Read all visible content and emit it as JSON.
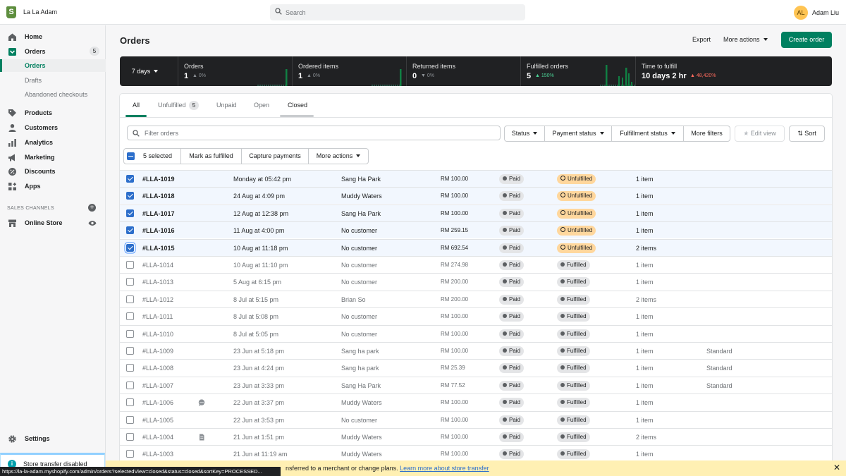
{
  "store_name": "La La Adam",
  "search": {
    "placeholder": "Search"
  },
  "user": {
    "initials": "AL",
    "name": "Adam Liu"
  },
  "sidebar": {
    "home": "Home",
    "orders": "Orders",
    "orders_count": "5",
    "orders_sub": "Orders",
    "drafts": "Drafts",
    "abandoned": "Abandoned checkouts",
    "products": "Products",
    "customers": "Customers",
    "analytics": "Analytics",
    "marketing": "Marketing",
    "discounts": "Discounts",
    "apps": "Apps",
    "sales_channels": "SALES CHANNELS",
    "online_store": "Online Store",
    "settings": "Settings",
    "transfer": "Store transfer disabled"
  },
  "page": {
    "title": "Orders",
    "export": "Export",
    "more_actions": "More actions",
    "create_order": "Create order"
  },
  "metrics": {
    "period": "7 days",
    "orders": {
      "label": "Orders",
      "value": "1",
      "delta": "0%"
    },
    "ordered_items": {
      "label": "Ordered items",
      "value": "1",
      "delta": "0%"
    },
    "returned_items": {
      "label": "Returned items",
      "value": "0",
      "delta": "0%"
    },
    "fulfilled_orders": {
      "label": "Fulfilled orders",
      "value": "5",
      "delta": "150%"
    },
    "time_to_fulfill": {
      "label": "Time to fulfill",
      "value": "10 days 2 hr",
      "delta": "48,420%"
    }
  },
  "tabs": {
    "all": "All",
    "unfulfilled": "Unfulfilled",
    "unfulfilled_count": "5",
    "unpaid": "Unpaid",
    "open": "Open",
    "closed": "Closed"
  },
  "filters": {
    "placeholder": "Filter orders",
    "status": "Status",
    "payment_status": "Payment status",
    "fulfillment_status": "Fulfillment status",
    "more_filters": "More filters",
    "edit_view": "Edit view",
    "sort": "Sort"
  },
  "bulk": {
    "selected": "5 selected",
    "mark_fulfilled": "Mark as fulfilled",
    "capture": "Capture payments",
    "more_actions": "More actions"
  },
  "orders": [
    {
      "id": "#LLA-1019",
      "date": "Monday at 05:42 pm",
      "customer": "Sang Ha Park",
      "total": "RM 100.00",
      "payment": "Paid",
      "fulfillment": "Unfulfilled",
      "items": "1 item",
      "delivery": "",
      "selected": true,
      "icon": ""
    },
    {
      "id": "#LLA-1018",
      "date": "24 Aug at 4:09 pm",
      "customer": "Muddy Waters",
      "total": "RM 100.00",
      "payment": "Paid",
      "fulfillment": "Unfulfilled",
      "items": "1 item",
      "delivery": "",
      "selected": true,
      "icon": ""
    },
    {
      "id": "#LLA-1017",
      "date": "12 Aug at 12:38 pm",
      "customer": "Sang Ha Park",
      "total": "RM 100.00",
      "payment": "Paid",
      "fulfillment": "Unfulfilled",
      "items": "1 item",
      "delivery": "",
      "selected": true,
      "icon": ""
    },
    {
      "id": "#LLA-1016",
      "date": "11 Aug at 4:00 pm",
      "customer": "No customer",
      "total": "RM 259.15",
      "payment": "Paid",
      "fulfillment": "Unfulfilled",
      "items": "1 item",
      "delivery": "",
      "selected": true,
      "icon": ""
    },
    {
      "id": "#LLA-1015",
      "date": "10 Aug at 11:18 pm",
      "customer": "No customer",
      "total": "RM 692.54",
      "payment": "Paid",
      "fulfillment": "Unfulfilled",
      "items": "2 items",
      "delivery": "",
      "selected": true,
      "icon": ""
    },
    {
      "id": "#LLA-1014",
      "date": "10 Aug at 11:10 pm",
      "customer": "No customer",
      "total": "RM 274.98",
      "payment": "Paid",
      "fulfillment": "Fulfilled",
      "items": "1 item",
      "delivery": "",
      "selected": false,
      "icon": ""
    },
    {
      "id": "#LLA-1013",
      "date": "5 Aug at 6:15 pm",
      "customer": "No customer",
      "total": "RM 200.00",
      "payment": "Paid",
      "fulfillment": "Fulfilled",
      "items": "1 item",
      "delivery": "",
      "selected": false,
      "icon": ""
    },
    {
      "id": "#LLA-1012",
      "date": "8 Jul at 5:15 pm",
      "customer": "Brian So",
      "total": "RM 200.00",
      "payment": "Paid",
      "fulfillment": "Fulfilled",
      "items": "2 items",
      "delivery": "",
      "selected": false,
      "icon": ""
    },
    {
      "id": "#LLA-1011",
      "date": "8 Jul at 5:08 pm",
      "customer": "No customer",
      "total": "RM 100.00",
      "payment": "Paid",
      "fulfillment": "Fulfilled",
      "items": "1 item",
      "delivery": "",
      "selected": false,
      "icon": ""
    },
    {
      "id": "#LLA-1010",
      "date": "8 Jul at 5:05 pm",
      "customer": "No customer",
      "total": "RM 100.00",
      "payment": "Paid",
      "fulfillment": "Fulfilled",
      "items": "1 item",
      "delivery": "",
      "selected": false,
      "icon": ""
    },
    {
      "id": "#LLA-1009",
      "date": "23 Jun at 5:18 pm",
      "customer": "Sang ha park",
      "total": "RM 100.00",
      "payment": "Paid",
      "fulfillment": "Fulfilled",
      "items": "1 item",
      "delivery": "Standard",
      "selected": false,
      "icon": ""
    },
    {
      "id": "#LLA-1008",
      "date": "23 Jun at 4:24 pm",
      "customer": "Sang ha park",
      "total": "RM 25.39",
      "payment": "Paid",
      "fulfillment": "Fulfilled",
      "items": "1 item",
      "delivery": "Standard",
      "selected": false,
      "icon": ""
    },
    {
      "id": "#LLA-1007",
      "date": "23 Jun at 3:33 pm",
      "customer": "Sang Ha Park",
      "total": "RM 77.52",
      "payment": "Paid",
      "fulfillment": "Fulfilled",
      "items": "1 item",
      "delivery": "Standard",
      "selected": false,
      "icon": ""
    },
    {
      "id": "#LLA-1006",
      "date": "22 Jun at 3:37 pm",
      "customer": "Muddy Waters",
      "total": "RM 100.00",
      "payment": "Paid",
      "fulfillment": "Fulfilled",
      "items": "1 item",
      "delivery": "",
      "selected": false,
      "icon": "comment-icon"
    },
    {
      "id": "#LLA-1005",
      "date": "22 Jun at 3:53 pm",
      "customer": "No customer",
      "total": "RM 100.00",
      "payment": "Paid",
      "fulfillment": "Fulfilled",
      "items": "1 item",
      "delivery": "",
      "selected": false,
      "icon": ""
    },
    {
      "id": "#LLA-1004",
      "date": "21 Jun at 1:51 pm",
      "customer": "Muddy Waters",
      "total": "RM 100.00",
      "payment": "Paid",
      "fulfillment": "Fulfilled",
      "items": "2 items",
      "delivery": "",
      "selected": false,
      "icon": "note-icon"
    },
    {
      "id": "#LLA-1003",
      "date": "21 Jun at 11:19 am",
      "customer": "Muddy Waters",
      "total": "RM 100.00",
      "payment": "Paid",
      "fulfillment": "Fulfilled",
      "items": "1 item",
      "delivery": "",
      "selected": false,
      "icon": ""
    }
  ],
  "banner": {
    "text": "nsferred to a merchant or change plans.",
    "link": "Learn more about store transfer"
  },
  "status_url": "https://la-la-adam.myshopify.com/admin/orders?selectedView=closed&status=closed&sortKey=PROCESSED...",
  "colors": {
    "accent": "#008060",
    "selection": "#2c6ecb",
    "unfulfilled": "#ffd79d",
    "metrics_bg": "#202123"
  }
}
